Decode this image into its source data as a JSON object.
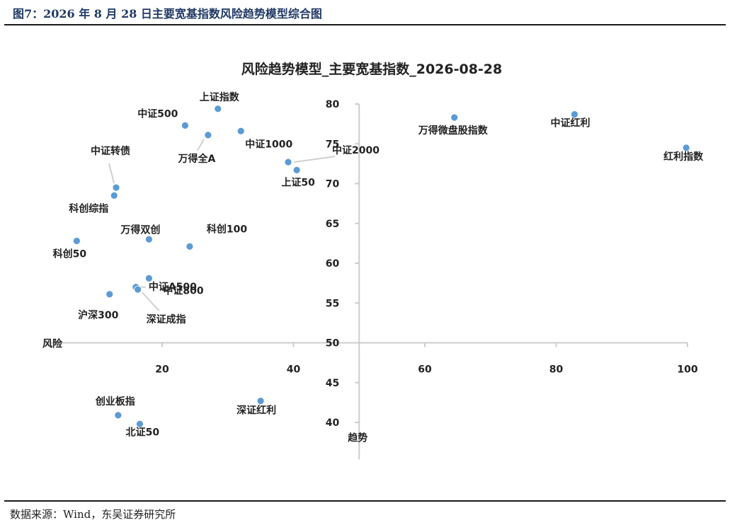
{
  "figure": {
    "caption": "图7：2026 年 8 月 28 日主要宽基指数风险趋势模型综合图",
    "source": "数据来源：Wind，东吴证券研究所"
  },
  "colors": {
    "point": "#5b9bd5",
    "axis": "#cccccc",
    "leader": "#d0d0d0"
  },
  "chart_data": {
    "type": "scatter",
    "title": "风险趋势模型_主要宽基指数_2026-08-28",
    "xlabel": "风险",
    "ylabel": "趋势",
    "xlim": [
      2,
      100
    ],
    "ylim": [
      38,
      80
    ],
    "x_ticks": [
      20,
      40,
      60,
      80,
      100
    ],
    "y_ticks": [
      40,
      45,
      50,
      55,
      60,
      65,
      70,
      75,
      80
    ],
    "x_axis_at_y": 50,
    "y_axis_at_x": 50,
    "grid": false,
    "legend": "none",
    "points": [
      {
        "name": "上证指数",
        "x": 28.5,
        "y": 79.4
      },
      {
        "name": "中证500",
        "x": 23.5,
        "y": 77.3
      },
      {
        "name": "万得全A",
        "x": 27.0,
        "y": 76.1
      },
      {
        "name": "中证1000",
        "x": 32.0,
        "y": 76.6
      },
      {
        "name": "中证2000",
        "x": 39.2,
        "y": 72.7
      },
      {
        "name": "上证50",
        "x": 40.5,
        "y": 71.7
      },
      {
        "name": "中证转债",
        "x": 13.0,
        "y": 69.5
      },
      {
        "name": "科创综指",
        "x": 12.7,
        "y": 68.5
      },
      {
        "name": "科创50",
        "x": 7.0,
        "y": 62.8
      },
      {
        "name": "万得双创",
        "x": 18.0,
        "y": 63.0
      },
      {
        "name": "科创100",
        "x": 24.2,
        "y": 62.1
      },
      {
        "name": "中证800",
        "x": 18.0,
        "y": 58.1
      },
      {
        "name": "中证A500",
        "x": 16.0,
        "y": 57.0
      },
      {
        "name": "深证成指",
        "x": 16.3,
        "y": 56.7
      },
      {
        "name": "沪深300",
        "x": 12.0,
        "y": 56.1
      },
      {
        "name": "万得微盘股指数",
        "x": 64.5,
        "y": 78.3
      },
      {
        "name": "中证红利",
        "x": 82.8,
        "y": 78.7
      },
      {
        "name": "红利指数",
        "x": 99.8,
        "y": 74.5
      },
      {
        "name": "深证红利",
        "x": 35.0,
        "y": 42.7
      },
      {
        "name": "创业板指",
        "x": 13.3,
        "y": 40.9
      },
      {
        "name": "北证50",
        "x": 16.6,
        "y": 39.8
      }
    ]
  }
}
